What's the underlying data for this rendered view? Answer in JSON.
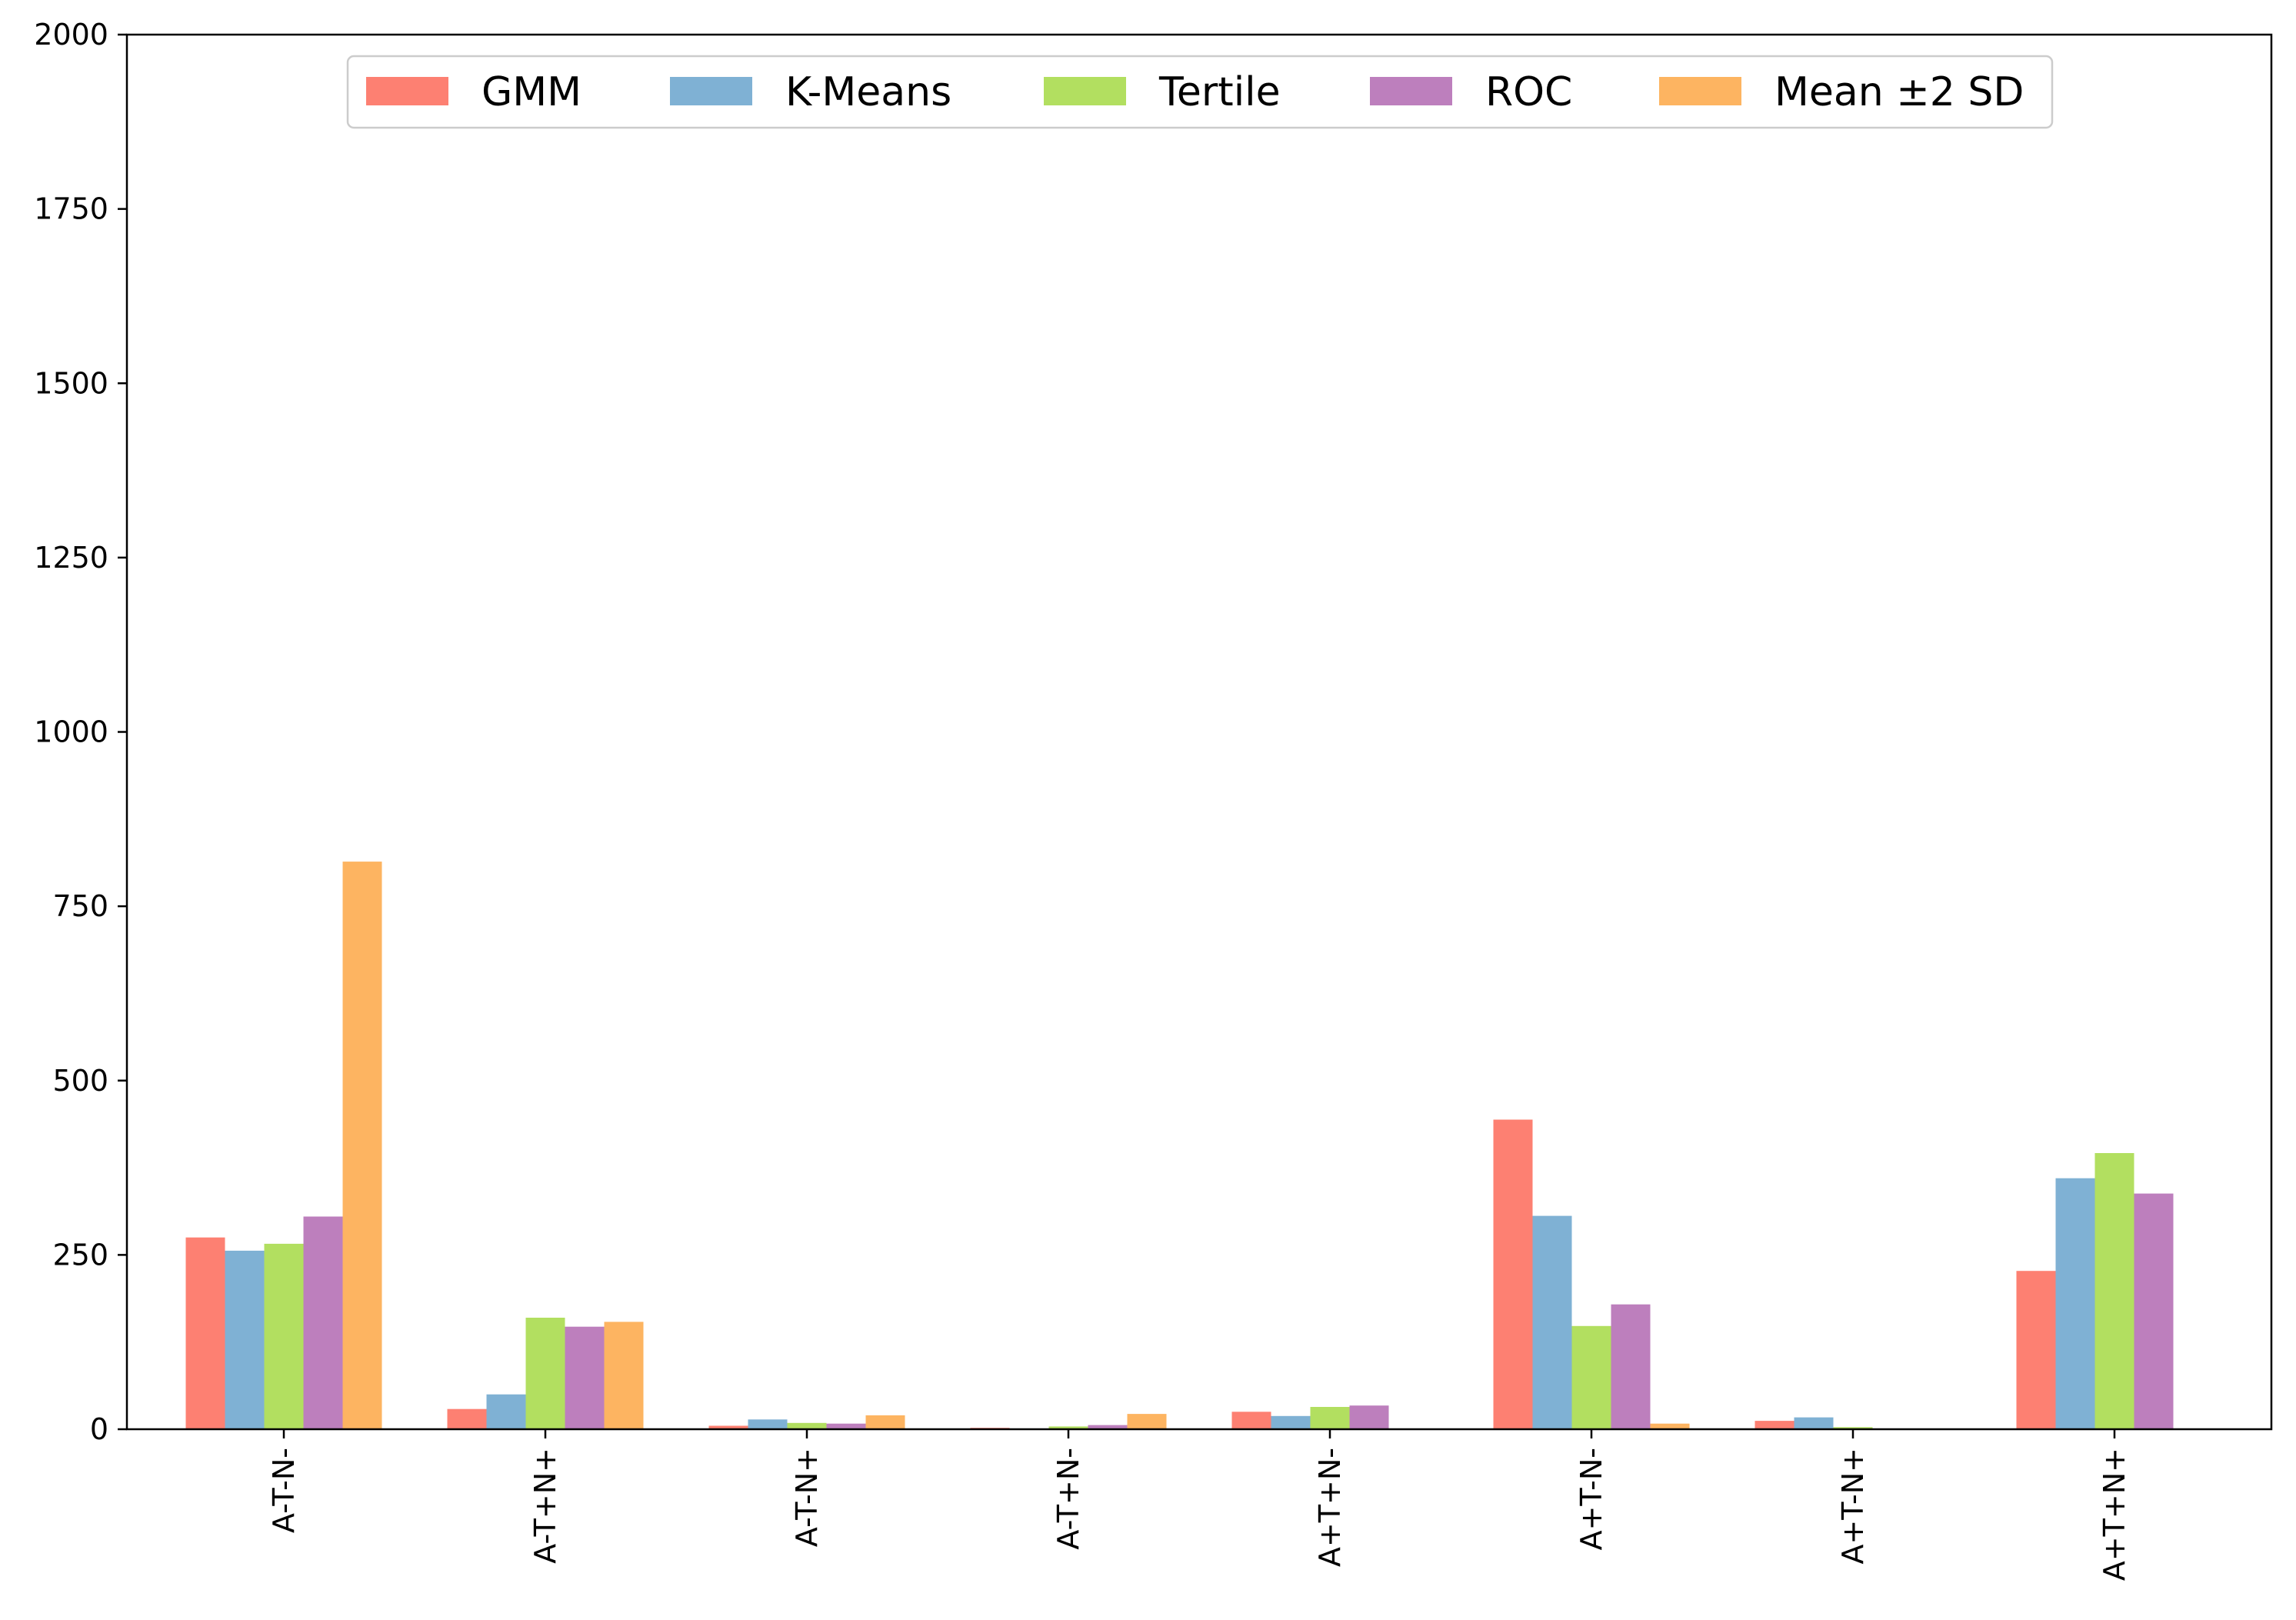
{
  "chart_data": {
    "type": "bar",
    "title": "",
    "xlabel": "",
    "ylabel": "",
    "ylim": [
      0,
      2000
    ],
    "yticks": [
      0,
      250,
      500,
      750,
      1000,
      1250,
      1500,
      1750,
      2000
    ],
    "grid": false,
    "legend_position": "top-center",
    "categories": [
      "A-T-N-",
      "A-T+N+",
      "A-T-N+",
      "A-T+N-",
      "A+T+N-",
      "A+T-N-",
      "A+T-N+",
      "A+T+N+"
    ],
    "series": [
      {
        "name": "GMM",
        "color": "#fd8072",
        "values": [
          275,
          29,
          5,
          2,
          25,
          444,
          12,
          227
        ]
      },
      {
        "name": "K-Means",
        "color": "#7fb1d4",
        "values": [
          256,
          50,
          14,
          0,
          19,
          306,
          17,
          360
        ]
      },
      {
        "name": "Tertile",
        "color": "#b2df60",
        "values": [
          266,
          160,
          9,
          4,
          32,
          148,
          3,
          396
        ]
      },
      {
        "name": "ROC",
        "color": "#bd7fbd",
        "values": [
          305,
          147,
          8,
          6,
          34,
          179,
          0,
          338
        ]
      },
      {
        "name": "Mean ±2 SD",
        "color": "#fdb461",
        "values": [
          814,
          154,
          20,
          22,
          0,
          8,
          0,
          0
        ]
      }
    ]
  }
}
